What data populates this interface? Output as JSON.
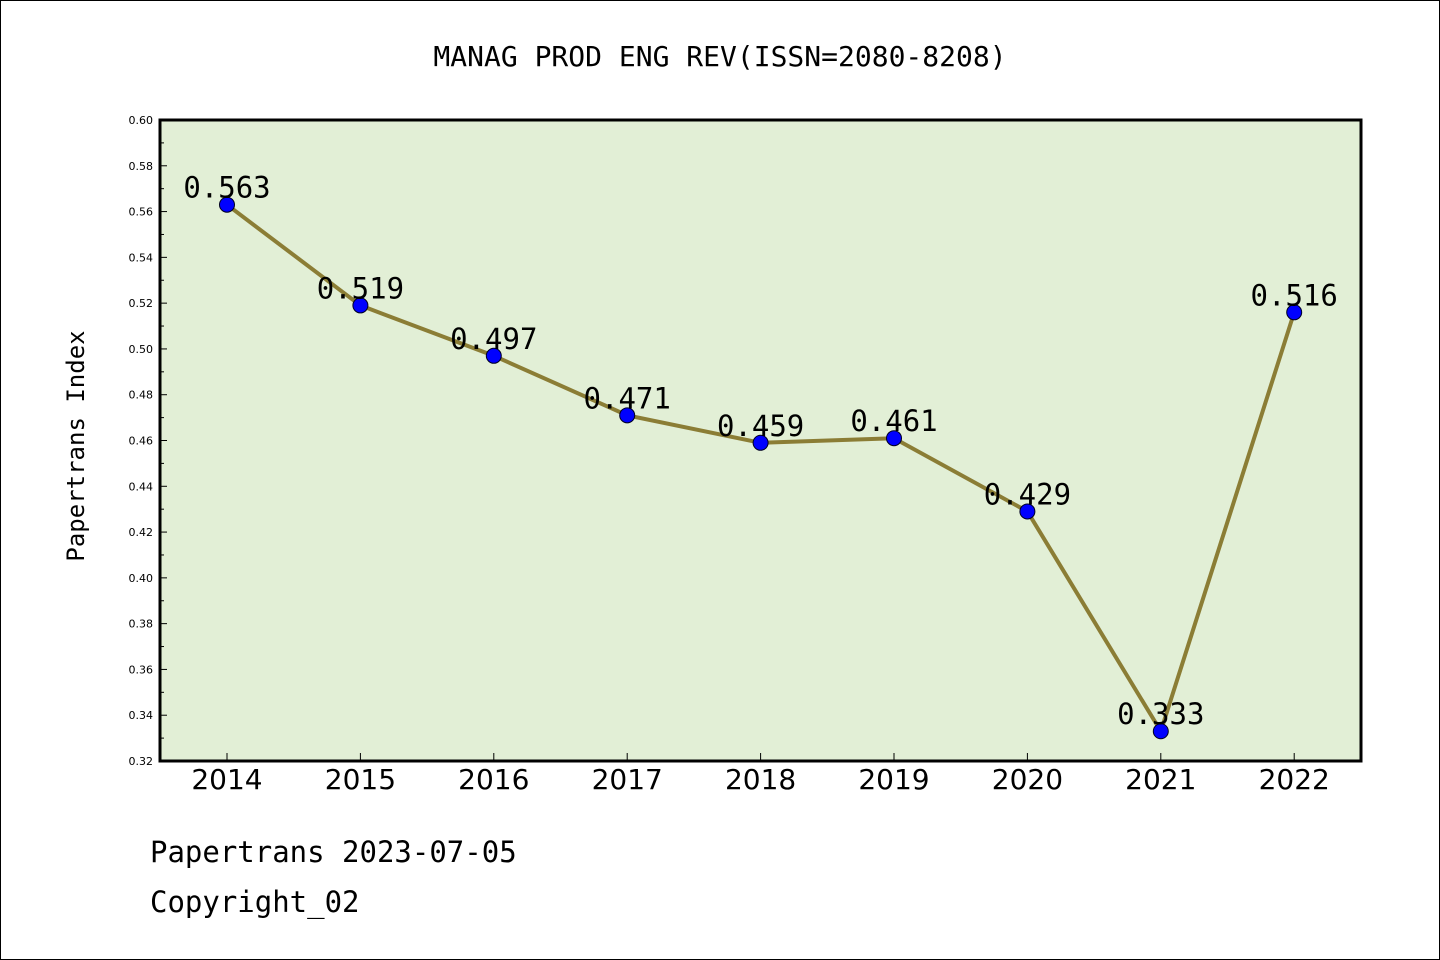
{
  "chart_data": {
    "type": "line",
    "title": "MANAG PROD ENG REV(ISSN=2080-8208)",
    "xlabel": "",
    "ylabel": "Papertrans Index",
    "categories": [
      "2014",
      "2015",
      "2016",
      "2017",
      "2018",
      "2019",
      "2020",
      "2021",
      "2022"
    ],
    "values": [
      0.563,
      0.519,
      0.497,
      0.471,
      0.459,
      0.461,
      0.429,
      0.333,
      0.516
    ],
    "data_labels": [
      "0.563",
      "0.519",
      "0.497",
      "0.471",
      "0.459",
      "0.461",
      "0.429",
      "0.333",
      "0.516"
    ],
    "ylim": [
      0.32,
      0.6
    ],
    "y_ticks": [
      "0.32",
      "0.34",
      "0.36",
      "0.38",
      "0.40",
      "0.42",
      "0.44",
      "0.46",
      "0.48",
      "0.50",
      "0.52",
      "0.54",
      "0.56",
      "0.58",
      "0.60"
    ],
    "grid": false,
    "colors": {
      "plot_background": "#e2efd6",
      "line": "#8b7d35",
      "marker": "#0000ff"
    }
  },
  "footer": {
    "line1": "Papertrans 2023-07-05",
    "line2": "Copyright_02"
  }
}
